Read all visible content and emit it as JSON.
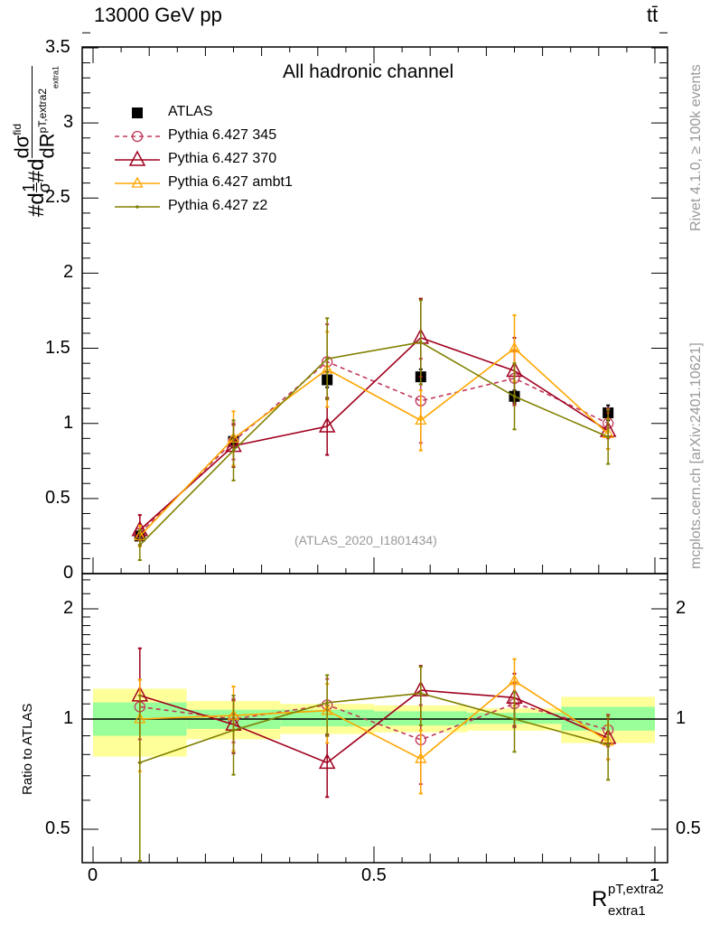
{
  "header": {
    "left": "13000 GeV pp",
    "right": "tt̄"
  },
  "side_text": {
    "rivet": "Rivet 4.1.0, ≥ 100k events",
    "mcplots": "mcplots.cern.ch [arXiv:2401.10621]"
  },
  "chart_data": [
    {
      "type": "line",
      "title": "All hadronic channel",
      "watermark": "(ATLAS_2020_I1801434)",
      "ylabel": "#d 1/σ #d dσ^fid / dR^{pT,extra2}_{extra1}",
      "ylabel_parts": {
        "a": "#d",
        "num1": "1",
        "den1": "σ",
        "b": "#d",
        "num2": "dσ",
        "sup2": "fid",
        "den2": "dR",
        "sup3": "pT,extra2",
        "sub3": "extra1"
      },
      "xlabel": "R^{pT,extra2}_{extra1}",
      "xlabel_parts": {
        "base": "R",
        "sup": "pT,extra2",
        "sub": "extra1"
      },
      "xlim": [
        0,
        1
      ],
      "ylim": [
        0,
        3.6
      ],
      "yticks": [
        "0",
        "0.5",
        "1",
        "1.5",
        "2",
        "2.5",
        "3",
        "3.5"
      ],
      "xticks": [
        "0",
        "0.5",
        "1"
      ],
      "x": [
        0.0833,
        0.25,
        0.4167,
        0.5833,
        0.75,
        0.9167
      ],
      "legend_position": "top-left",
      "series": [
        {
          "name": "ATLAS",
          "color": "#000000",
          "marker": "square",
          "values": [
            0.25,
            0.88,
            1.29,
            1.31,
            1.18,
            1.07
          ],
          "errors": [
            0.02,
            0.04,
            0.05,
            0.05,
            0.04,
            0.05
          ],
          "band_inner": [
            [
              0.9,
              1.11
            ],
            [
              0.94,
              1.06
            ],
            [
              0.955,
              1.06
            ],
            [
              0.96,
              1.05
            ],
            [
              0.97,
              1.04
            ],
            [
              0.93,
              1.08
            ]
          ],
          "band_outer": [
            [
              0.79,
              1.21
            ],
            [
              0.88,
              1.12
            ],
            [
              0.91,
              1.1
            ],
            [
              0.92,
              1.09
            ],
            [
              0.93,
              1.07
            ],
            [
              0.86,
              1.15
            ]
          ]
        },
        {
          "name": "Pythia 6.427 345",
          "color": "#c0395a",
          "marker": "circle",
          "dashed": true,
          "values": [
            0.27,
            0.88,
            1.41,
            1.15,
            1.3,
            1.0
          ],
          "errors": [
            0.05,
            0.12,
            0.25,
            0.28,
            0.18,
            0.1
          ]
        },
        {
          "name": "Pythia 6.427 370",
          "color": "#a0001e",
          "marker": "triangle",
          "values": [
            0.29,
            0.85,
            0.98,
            1.57,
            1.35,
            0.95
          ],
          "errors": [
            0.1,
            0.14,
            0.19,
            0.26,
            0.22,
            0.12
          ]
        },
        {
          "name": "Pythia 6.427 ambt1",
          "color": "#ffa500",
          "marker": "triangle-small",
          "values": [
            0.25,
            0.9,
            1.36,
            1.02,
            1.5,
            0.93
          ],
          "errors": [
            0.07,
            0.18,
            0.25,
            0.2,
            0.22,
            0.1
          ]
        },
        {
          "name": "Pythia 6.427 z2",
          "color": "#808000",
          "marker": "dot",
          "values": [
            0.19,
            0.82,
            1.43,
            1.54,
            1.18,
            0.91
          ],
          "errors": [
            0.1,
            0.2,
            0.27,
            0.28,
            0.22,
            0.18
          ]
        }
      ]
    },
    {
      "type": "line",
      "ylabel": "Ratio to ATLAS",
      "yscale": "log",
      "ylim": [
        0.405,
        2.5
      ],
      "yticks": [
        "0.5",
        "1",
        "2"
      ],
      "reference": 1
    }
  ]
}
